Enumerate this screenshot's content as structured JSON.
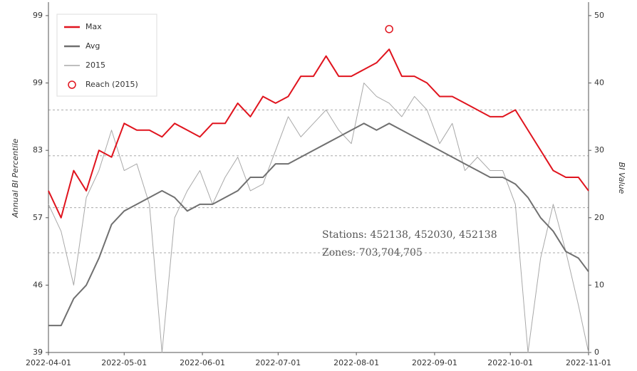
{
  "chart_data": {
    "type": "line",
    "y_label": "Annual BI Percentile",
    "y2_label": "BI Value",
    "left_tick_labels": [
      "39",
      "46",
      "57",
      "83",
      "99",
      "99"
    ],
    "x": [
      "2022-04-01",
      "2022-04-06",
      "2022-04-11",
      "2022-04-16",
      "2022-04-21",
      "2022-04-26",
      "2022-05-01",
      "2022-05-06",
      "2022-05-11",
      "2022-05-16",
      "2022-05-21",
      "2022-05-26",
      "2022-05-31",
      "2022-06-05",
      "2022-06-10",
      "2022-06-15",
      "2022-06-20",
      "2022-06-25",
      "2022-06-30",
      "2022-07-05",
      "2022-07-10",
      "2022-07-15",
      "2022-07-20",
      "2022-07-25",
      "2022-07-30",
      "2022-08-04",
      "2022-08-09",
      "2022-08-14",
      "2022-08-19",
      "2022-08-24",
      "2022-08-29",
      "2022-09-03",
      "2022-09-08",
      "2022-09-13",
      "2022-09-18",
      "2022-09-23",
      "2022-09-28",
      "2022-10-03",
      "2022-10-08",
      "2022-10-13",
      "2022-10-18",
      "2022-10-23",
      "2022-10-28",
      "2022-11-01"
    ],
    "series": [
      {
        "name": "Max",
        "color": "#e0141e",
        "width": 2,
        "axis": "y2",
        "values": [
          24,
          20,
          27,
          24,
          30,
          29,
          34,
          33,
          33,
          32,
          34,
          33,
          32,
          34,
          34,
          37,
          35,
          38,
          37,
          38,
          41,
          41,
          44,
          41,
          41,
          42,
          43,
          45,
          41,
          41,
          40,
          38,
          38,
          37,
          36,
          35,
          35,
          36,
          33,
          30,
          27,
          26,
          26,
          24
        ]
      },
      {
        "name": "Avg",
        "color": "#707070",
        "width": 2,
        "axis": "y2",
        "values": [
          4,
          4,
          8,
          10,
          14,
          19,
          21,
          22,
          23,
          24,
          23,
          21,
          22,
          22,
          23,
          24,
          26,
          26,
          28,
          28,
          29,
          30,
          31,
          32,
          33,
          34,
          33,
          34,
          33,
          32,
          31,
          30,
          29,
          28,
          27,
          26,
          26,
          25,
          23,
          20,
          18,
          15,
          14,
          12
        ]
      },
      {
        "name": "2015",
        "color": "#a8a8a8",
        "width": 1,
        "axis": "y2",
        "values": [
          22,
          18,
          10,
          23,
          27,
          33,
          27,
          28,
          22,
          0,
          20,
          24,
          27,
          22,
          26,
          29,
          24,
          25,
          30,
          35,
          32,
          34,
          36,
          33,
          31,
          40,
          38,
          37,
          35,
          38,
          36,
          31,
          34,
          27,
          29,
          27,
          27,
          22,
          0,
          14,
          22,
          15,
          7,
          0
        ]
      }
    ],
    "points": {
      "name": "Reach (2015)",
      "color": "#e0141e",
      "x": [
        "2022-08-14"
      ],
      "values": [
        48
      ]
    },
    "reference_lines": [
      36,
      29.2,
      21.5,
      14.8
    ],
    "xlim": [
      "2022-04-01",
      "2022-11-01"
    ],
    "xticks": [
      "2022-04-01",
      "2022-05-01",
      "2022-06-01",
      "2022-07-01",
      "2022-08-01",
      "2022-09-01",
      "2022-10-01",
      "2022-11-01"
    ],
    "y2lim": [
      0,
      52
    ],
    "y2ticks": [
      0,
      10,
      20,
      30,
      40,
      50
    ],
    "legend": "upper left",
    "annotations": [
      "Stations: 452138, 452030, 452138",
      "Zones: 703,704,705"
    ]
  }
}
